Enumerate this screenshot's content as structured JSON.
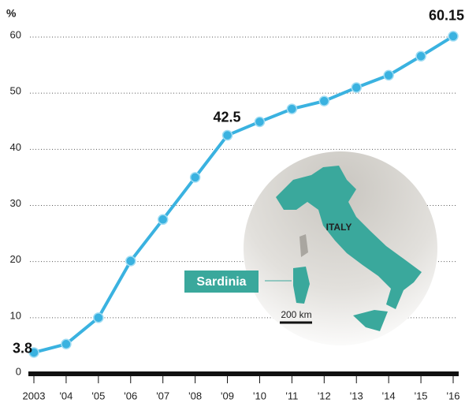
{
  "chart_data": {
    "type": "line",
    "ylabel": "%",
    "categories": [
      "2003",
      "'04",
      "'05",
      "'06",
      "'07",
      "'08",
      "'09",
      "'10",
      "'11",
      "'12",
      "'13",
      "'14",
      "'15",
      "'16"
    ],
    "values": [
      3.8,
      5.3,
      10.0,
      20.1,
      27.5,
      35.0,
      42.5,
      44.9,
      47.2,
      48.6,
      51.0,
      53.2,
      56.6,
      60.15
    ],
    "value_labels": [
      "3.8",
      null,
      null,
      null,
      null,
      null,
      "42.5",
      null,
      null,
      null,
      null,
      null,
      null,
      "60.15"
    ],
    "color": "#3ab2e0",
    "ylim": [
      0,
      63
    ],
    "yticks": [
      0,
      10,
      20,
      30,
      40,
      50,
      60
    ],
    "grid": true,
    "annotations": {
      "country": "ITALY",
      "island": "Sardinia",
      "scale": "200 km"
    }
  }
}
